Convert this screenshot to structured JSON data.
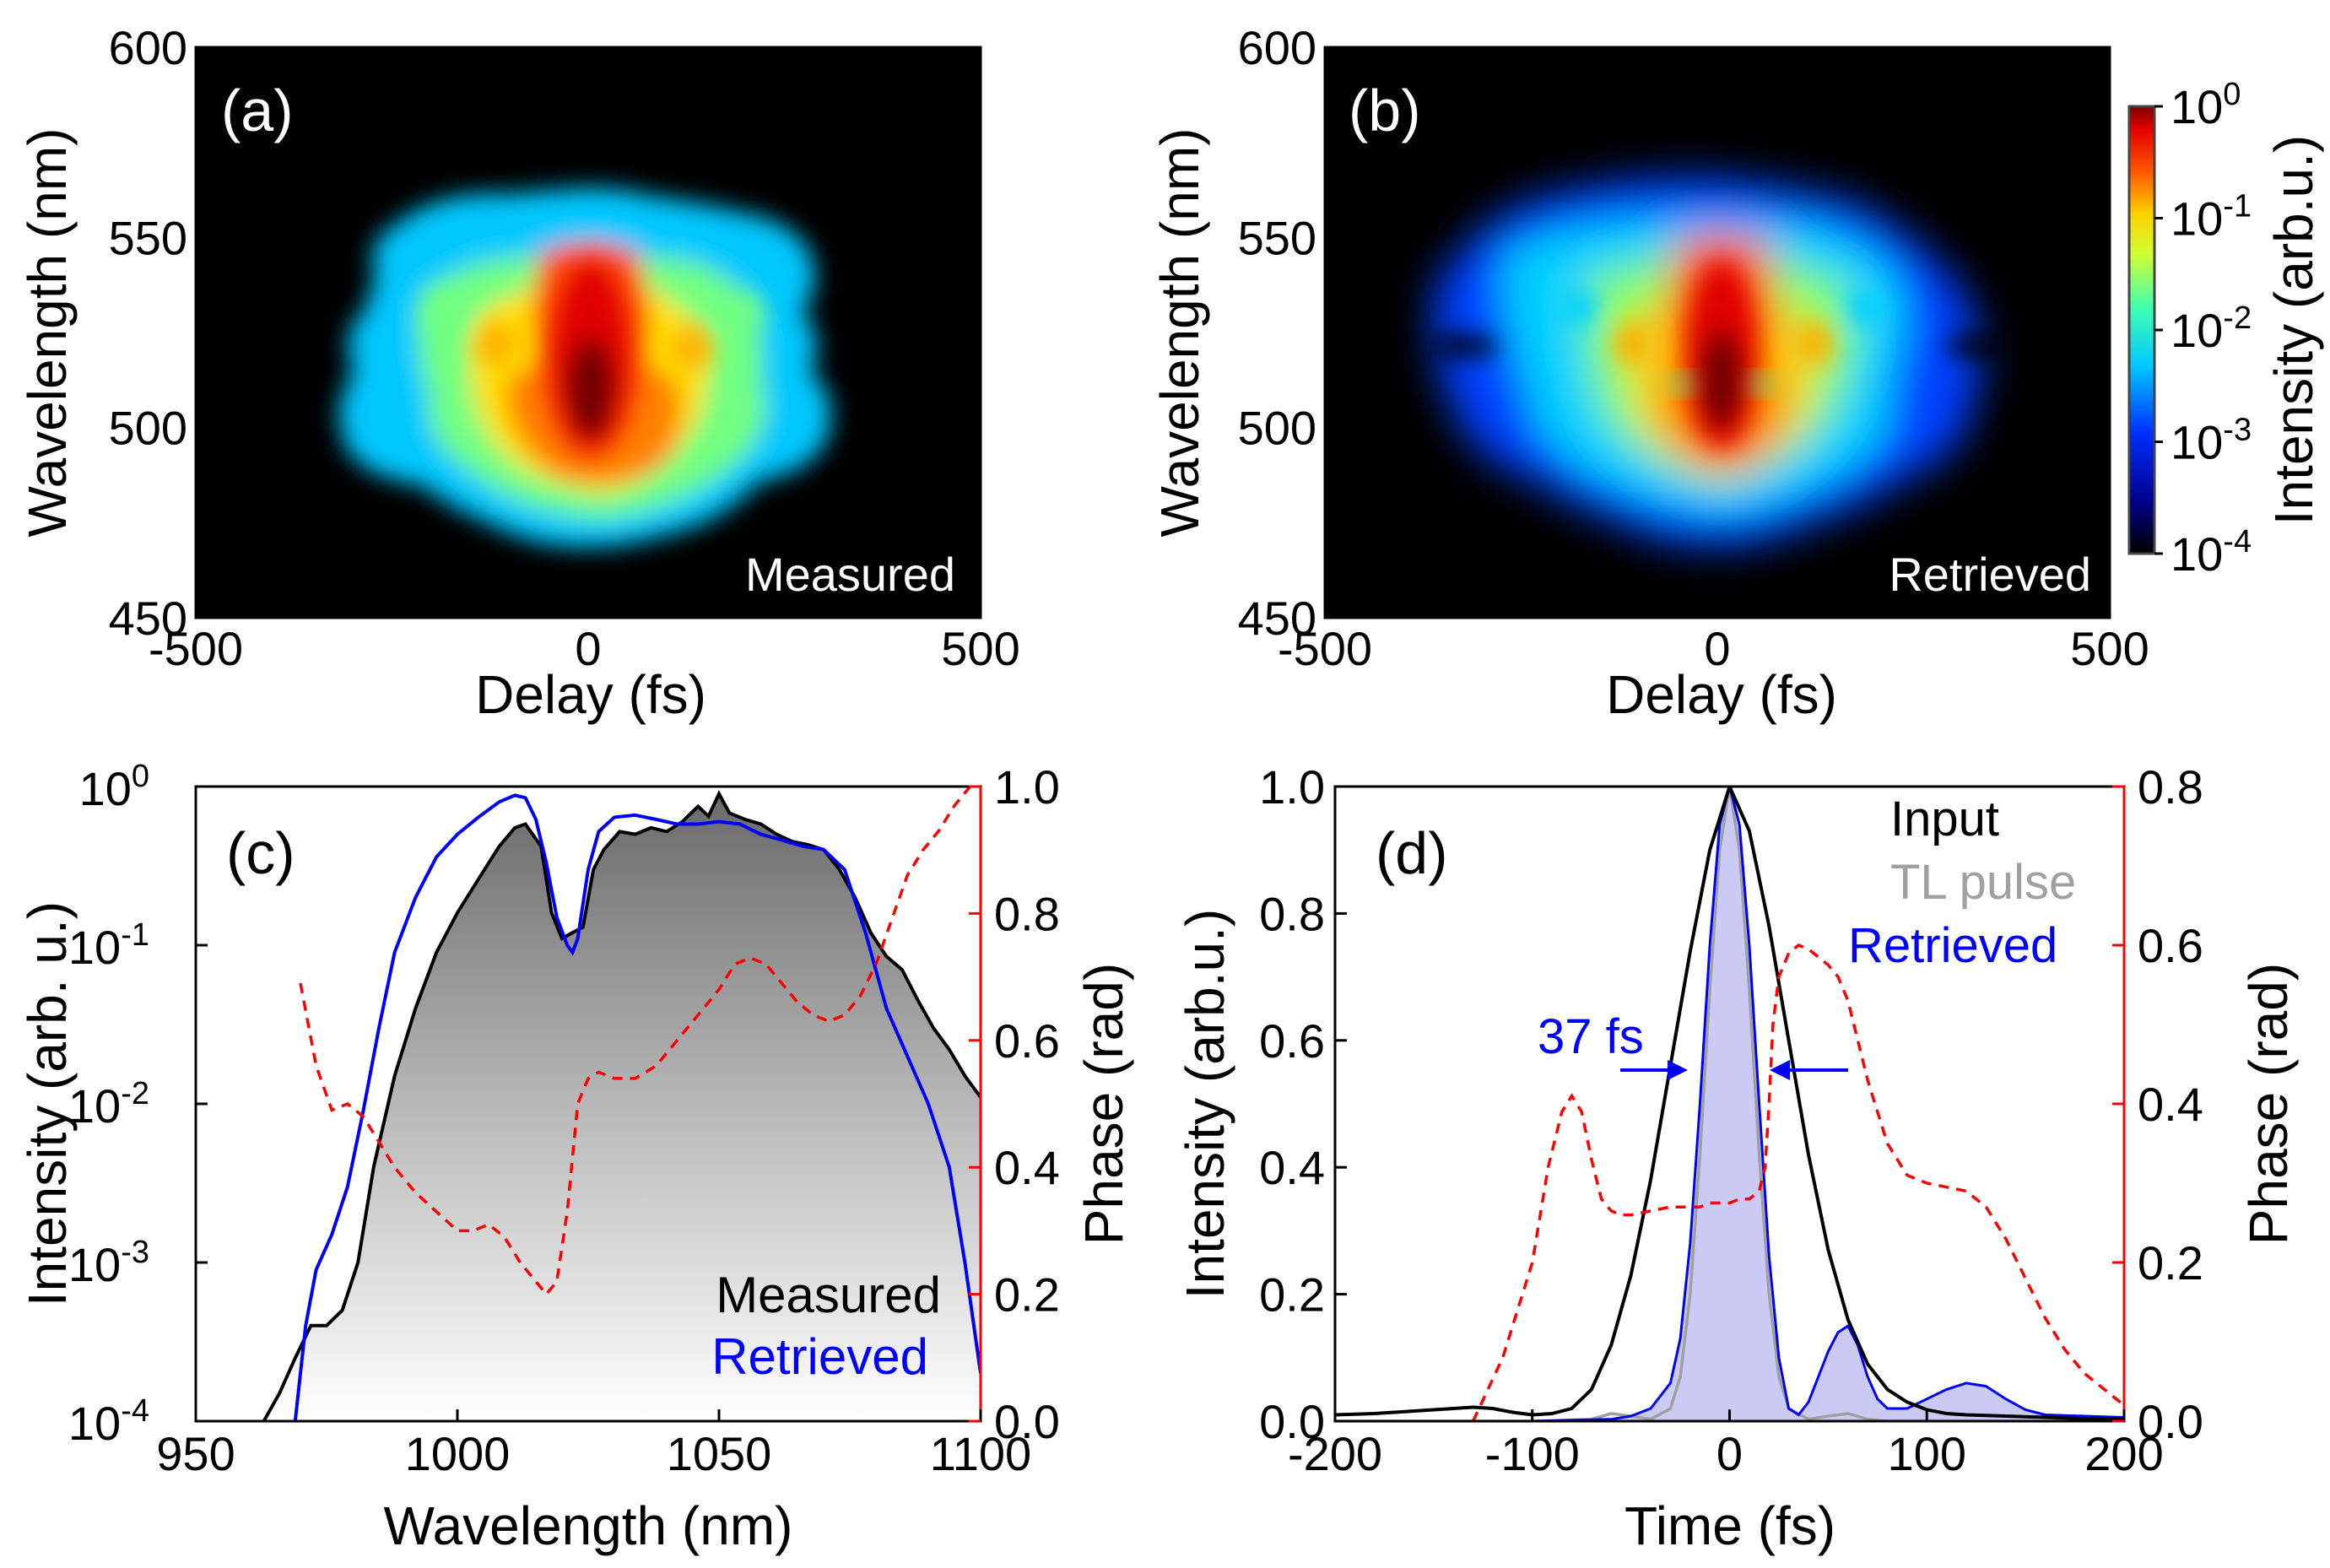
{
  "chart_data": [
    {
      "panel": "(a)",
      "type": "heatmap",
      "label": "Measured",
      "xlabel": "Delay (fs)",
      "ylabel": "Wavelength (nm)",
      "xlim": [
        -500,
        500
      ],
      "ylim": [
        450,
        600
      ],
      "xticks": [
        "-500",
        "0",
        "500"
      ],
      "yticks": [
        "450",
        "500",
        "550",
        "600"
      ]
    },
    {
      "panel": "(b)",
      "type": "heatmap",
      "label": "Retrieved",
      "xlabel": "Delay (fs)",
      "ylabel": "Wavelength (nm)",
      "xlim": [
        -500,
        500
      ],
      "ylim": [
        450,
        600
      ],
      "xticks": [
        "-500",
        "0",
        "500"
      ],
      "yticks": [
        "450",
        "500",
        "550",
        "600"
      ],
      "colorbar": {
        "label": "Intensity (arb.u.)",
        "scale": "log",
        "ticks": [
          {
            "base": "10",
            "exp": "0"
          },
          {
            "base": "10",
            "exp": "-1"
          },
          {
            "base": "10",
            "exp": "-2"
          },
          {
            "base": "10",
            "exp": "-3"
          },
          {
            "base": "10",
            "exp": "-4"
          }
        ]
      }
    },
    {
      "panel": "(c)",
      "type": "line",
      "xlabel": "Wavelength (nm)",
      "ylabel": "Intensity (arb. u.)",
      "ylabel_right": "Phase (rad)",
      "xlim": [
        950,
        1100
      ],
      "ylim_log": [
        0.0001,
        1
      ],
      "ylim_right": [
        0,
        1
      ],
      "xticks": [
        "950",
        "1000",
        "1050",
        "1100"
      ],
      "yticks_log": [
        {
          "base": "10",
          "exp": "0"
        },
        {
          "base": "10",
          "exp": "-1"
        },
        {
          "base": "10",
          "exp": "-2"
        },
        {
          "base": "10",
          "exp": "-3"
        },
        {
          "base": "10",
          "exp": "-4"
        }
      ],
      "yticks_right": [
        "0.0",
        "0.2",
        "0.4",
        "0.6",
        "0.8",
        "1.0"
      ],
      "legend": [
        "Measured",
        "Retrieved"
      ],
      "series": [
        {
          "name": "Measured",
          "color": "#000000",
          "fill": "gray-gradient",
          "x": [
            963,
            966,
            969,
            972,
            975,
            978,
            981,
            984,
            988,
            992,
            996,
            1000,
            1004,
            1008,
            1011,
            1013,
            1016,
            1018,
            1020,
            1022,
            1024,
            1026,
            1028,
            1031,
            1034,
            1037,
            1040,
            1043,
            1046,
            1048,
            1050,
            1052,
            1055,
            1058,
            1061,
            1064,
            1067,
            1070,
            1073,
            1076,
            1079,
            1082,
            1085,
            1088,
            1091,
            1094,
            1097,
            1100
          ],
          "y": [
            0.0001,
            0.00015,
            0.00025,
            0.0004,
            0.0004,
            0.0005,
            0.001,
            0.004,
            0.015,
            0.04,
            0.09,
            0.16,
            0.26,
            0.42,
            0.55,
            0.58,
            0.42,
            0.16,
            0.11,
            0.12,
            0.13,
            0.3,
            0.4,
            0.52,
            0.5,
            0.55,
            0.52,
            0.6,
            0.75,
            0.65,
            0.9,
            0.68,
            0.62,
            0.58,
            0.5,
            0.45,
            0.43,
            0.4,
            0.3,
            0.2,
            0.12,
            0.085,
            0.07,
            0.045,
            0.03,
            0.022,
            0.015,
            0.011
          ]
        },
        {
          "name": "Retrieved",
          "color": "#0000ff",
          "x": [
            969,
            971,
            973,
            976,
            979,
            982,
            985,
            988,
            992,
            996,
            1000,
            1004,
            1008,
            1011,
            1013,
            1015,
            1017,
            1019,
            1021,
            1022,
            1023,
            1025,
            1027,
            1030,
            1034,
            1038,
            1042,
            1046,
            1050,
            1054,
            1058,
            1062,
            1066,
            1070,
            1074,
            1078,
            1082,
            1086,
            1090,
            1094,
            1097,
            1100
          ],
          "y": [
            0.0001,
            0.0004,
            0.0009,
            0.0015,
            0.003,
            0.009,
            0.03,
            0.09,
            0.2,
            0.36,
            0.5,
            0.64,
            0.8,
            0.88,
            0.85,
            0.62,
            0.33,
            0.15,
            0.1,
            0.09,
            0.11,
            0.3,
            0.52,
            0.64,
            0.66,
            0.62,
            0.58,
            0.58,
            0.6,
            0.58,
            0.5,
            0.46,
            0.42,
            0.4,
            0.3,
            0.12,
            0.04,
            0.02,
            0.01,
            0.004,
            0.001,
            0.0002
          ]
        },
        {
          "name": "Phase",
          "color": "#ff0000",
          "dashed": true,
          "axis": "right",
          "x": [
            970,
            973,
            976,
            979,
            982,
            985,
            988,
            992,
            996,
            1000,
            1003,
            1006,
            1009,
            1012,
            1015,
            1017,
            1019,
            1021,
            1023,
            1025,
            1027,
            1030,
            1034,
            1038,
            1042,
            1046,
            1050,
            1053,
            1056,
            1059,
            1062,
            1065,
            1068,
            1071,
            1074,
            1077,
            1080,
            1083,
            1086,
            1089,
            1092,
            1095,
            1098
          ],
          "y": [
            0.69,
            0.56,
            0.49,
            0.5,
            0.48,
            0.44,
            0.4,
            0.36,
            0.33,
            0.3,
            0.3,
            0.31,
            0.29,
            0.25,
            0.22,
            0.2,
            0.22,
            0.33,
            0.5,
            0.54,
            0.55,
            0.54,
            0.54,
            0.56,
            0.6,
            0.64,
            0.68,
            0.72,
            0.73,
            0.72,
            0.69,
            0.66,
            0.64,
            0.63,
            0.64,
            0.67,
            0.72,
            0.79,
            0.86,
            0.9,
            0.93,
            0.97,
            1.0
          ]
        }
      ]
    },
    {
      "panel": "(d)",
      "type": "line",
      "xlabel": "Time (fs)",
      "ylabel": "Intensity (arb.u.)",
      "ylabel_right": "Phase (rad)",
      "xlim": [
        -200,
        200
      ],
      "ylim": [
        0,
        1
      ],
      "ylim_right": [
        0,
        0.8
      ],
      "xticks": [
        "-200",
        "-100",
        "0",
        "100",
        "200"
      ],
      "yticks": [
        "0.0",
        "0.2",
        "0.4",
        "0.6",
        "0.8",
        "1.0"
      ],
      "yticks_right": [
        "0.0",
        "0.2",
        "0.4",
        "0.6",
        "0.8"
      ],
      "legend": [
        "Input",
        "TL pulse",
        "Retrieved"
      ],
      "annotation": "37 fs",
      "series": [
        {
          "name": "Input",
          "color": "#000000",
          "x": [
            -200,
            -180,
            -160,
            -140,
            -130,
            -120,
            -110,
            -100,
            -90,
            -80,
            -70,
            -60,
            -50,
            -40,
            -30,
            -20,
            -10,
            0,
            10,
            20,
            30,
            40,
            50,
            60,
            70,
            80,
            90,
            100,
            110,
            120,
            130,
            140,
            160,
            180,
            200
          ],
          "y": [
            0.01,
            0.012,
            0.016,
            0.02,
            0.022,
            0.02,
            0.014,
            0.01,
            0.012,
            0.02,
            0.05,
            0.12,
            0.23,
            0.38,
            0.56,
            0.74,
            0.9,
            1.0,
            0.93,
            0.78,
            0.6,
            0.42,
            0.27,
            0.16,
            0.09,
            0.05,
            0.03,
            0.018,
            0.012,
            0.01,
            0.009,
            0.008,
            0.006,
            0.004,
            0.003
          ]
        },
        {
          "name": "TL pulse",
          "color": "#a0a0a0",
          "x": [
            -200,
            -100,
            -70,
            -60,
            -50,
            -40,
            -30,
            -25,
            -20,
            -15,
            -10,
            -5,
            0,
            5,
            10,
            15,
            20,
            25,
            30,
            40,
            50,
            60,
            70,
            80,
            100,
            200
          ],
          "y": [
            0.0,
            0.0,
            0.003,
            0.012,
            0.008,
            0.003,
            0.02,
            0.07,
            0.2,
            0.42,
            0.68,
            0.9,
            1.0,
            0.9,
            0.68,
            0.42,
            0.2,
            0.07,
            0.02,
            0.003,
            0.008,
            0.012,
            0.003,
            0.0,
            0.0,
            0.0
          ]
        },
        {
          "name": "Retrieved",
          "color": "#0000ff",
          "fill": "light-blue",
          "x": [
            -200,
            -100,
            -60,
            -50,
            -40,
            -30,
            -25,
            -20,
            -15,
            -10,
            -5,
            0,
            5,
            10,
            15,
            20,
            25,
            30,
            35,
            40,
            45,
            50,
            55,
            60,
            65,
            70,
            75,
            80,
            90,
            100,
            110,
            120,
            130,
            140,
            150,
            160,
            180,
            200
          ],
          "y": [
            0.0,
            0.0,
            0.003,
            0.008,
            0.02,
            0.06,
            0.13,
            0.28,
            0.5,
            0.75,
            0.94,
            1.0,
            0.94,
            0.75,
            0.5,
            0.26,
            0.1,
            0.02,
            0.01,
            0.03,
            0.07,
            0.11,
            0.14,
            0.15,
            0.12,
            0.07,
            0.035,
            0.02,
            0.02,
            0.035,
            0.05,
            0.06,
            0.055,
            0.035,
            0.018,
            0.01,
            0.008,
            0.006
          ]
        },
        {
          "name": "Phase",
          "color": "#ff0000",
          "dashed": true,
          "axis": "right",
          "x": [
            -130,
            -115,
            -100,
            -92,
            -85,
            -80,
            -75,
            -70,
            -65,
            -60,
            -55,
            -50,
            -40,
            -30,
            -20,
            -15,
            -10,
            -5,
            0,
            5,
            10,
            15,
            18,
            20,
            22,
            25,
            30,
            35,
            40,
            45,
            50,
            55,
            60,
            70,
            80,
            90,
            100,
            110,
            120,
            130,
            140,
            150,
            160,
            170,
            180,
            190,
            200
          ],
          "y": [
            0.0,
            0.08,
            0.2,
            0.32,
            0.39,
            0.41,
            0.39,
            0.33,
            0.28,
            0.265,
            0.26,
            0.26,
            0.265,
            0.27,
            0.27,
            0.27,
            0.275,
            0.275,
            0.275,
            0.28,
            0.28,
            0.29,
            0.32,
            0.4,
            0.5,
            0.56,
            0.59,
            0.6,
            0.595,
            0.585,
            0.575,
            0.56,
            0.53,
            0.43,
            0.35,
            0.31,
            0.3,
            0.295,
            0.29,
            0.27,
            0.23,
            0.18,
            0.13,
            0.09,
            0.06,
            0.04,
            0.02
          ]
        }
      ]
    }
  ]
}
